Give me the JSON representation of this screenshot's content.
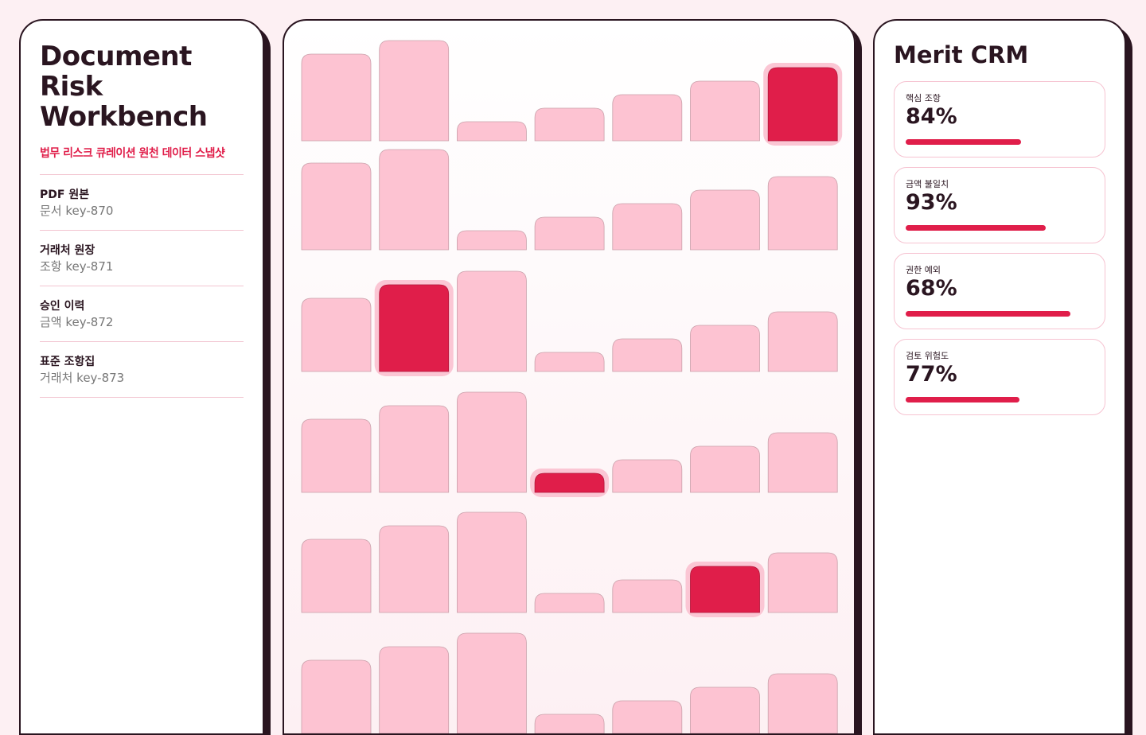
{
  "sidebar": {
    "title": "Document Risk Workbench",
    "subtitle": "법무 리스크 큐레이션 원천 데이터 스냅샷",
    "items": [
      {
        "title": "PDF 원본",
        "meta": "문서 key-870"
      },
      {
        "title": "거래처 원장",
        "meta": "조항 key-871"
      },
      {
        "title": "승인 이력",
        "meta": "금액 key-872"
      },
      {
        "title": "표준 조항집",
        "meta": "거래처 key-873"
      }
    ]
  },
  "metrics": {
    "title": "Merit CRM",
    "cards": [
      {
        "label": "핵심 조항",
        "value": "84%"
      },
      {
        "label": "금액 불일치",
        "value": "93%"
      },
      {
        "label": "권한 예외",
        "value": "68%"
      },
      {
        "label": "검토 위험도",
        "value": "77%"
      }
    ]
  }
}
